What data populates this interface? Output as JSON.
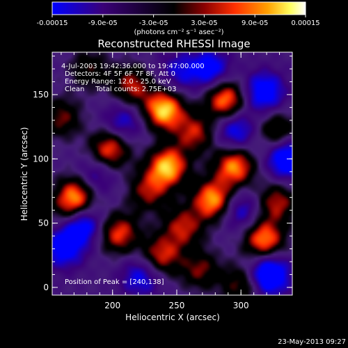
{
  "chart_data": {
    "type": "heatmap",
    "title": "Reconstructed RHESSI Image",
    "xlabel": "Heliocentric X (arcsec)",
    "ylabel": "Heliocentric Y (arcsec)",
    "xlim": [
      153,
      340
    ],
    "ylim": [
      -6,
      183
    ],
    "x_ticks": [
      "200",
      "250",
      "300"
    ],
    "x_tick_values": [
      200,
      250,
      300
    ],
    "y_ticks": [
      "0",
      "50",
      "100",
      "150"
    ],
    "y_tick_values": [
      0,
      50,
      100,
      150
    ],
    "colorbar": {
      "min": -0.00015,
      "max": 0.00015,
      "tick_labels": [
        "-0.00015",
        "-9.0e-05",
        "-3.0e-05",
        "3.0e-05",
        "9.0e-05",
        "0.00015"
      ],
      "tick_values": [
        -0.00015,
        -9e-05,
        -3e-05,
        3e-05,
        9e-05,
        0.00015
      ],
      "units_label": "(photons cm⁻² s⁻¹ asec⁻²)",
      "colors": [
        "#0000ff",
        "#3a0078",
        "#000000",
        "#8a0000",
        "#ff3000",
        "#ffa000",
        "#ffff60",
        "#ffffff"
      ]
    },
    "peaks": [
      {
        "x": 240,
        "y": 138,
        "v": 1.0
      },
      {
        "x": 243,
        "y": 94,
        "v": 0.95
      },
      {
        "x": 278,
        "y": 68,
        "v": 0.9
      },
      {
        "x": 288,
        "y": 146,
        "v": 0.85
      },
      {
        "x": 295,
        "y": 94,
        "v": 0.85
      },
      {
        "x": 168,
        "y": 60,
        "v": 0.65
      },
      {
        "x": 173,
        "y": 74,
        "v": 0.7
      },
      {
        "x": 198,
        "y": 108,
        "v": 0.75
      },
      {
        "x": 205,
        "y": 42,
        "v": 0.7
      },
      {
        "x": 215,
        "y": 157,
        "v": 0.6
      },
      {
        "x": 238,
        "y": 25,
        "v": 0.65
      },
      {
        "x": 255,
        "y": 47,
        "v": 0.6
      },
      {
        "x": 264,
        "y": 120,
        "v": 0.6
      },
      {
        "x": 318,
        "y": 37,
        "v": 0.85
      },
      {
        "x": 328,
        "y": 66,
        "v": 0.6
      },
      {
        "x": 268,
        "y": 14,
        "v": 0.5
      },
      {
        "x": 300,
        "y": 2,
        "v": 0.5
      },
      {
        "x": 228,
        "y": 75,
        "v": 0.55
      },
      {
        "x": 328,
        "y": 122,
        "v": 0.5
      },
      {
        "x": 160,
        "y": 132,
        "v": 0.5
      },
      {
        "x": 182,
        "y": 170,
        "v": 0.4
      },
      {
        "x": 322,
        "y": 10,
        "v": -0.9
      },
      {
        "x": 175,
        "y": 50,
        "v": -0.85
      },
      {
        "x": 318,
        "y": 152,
        "v": -0.7
      },
      {
        "x": 336,
        "y": 100,
        "v": -0.8
      },
      {
        "x": 296,
        "y": 122,
        "v": -0.55
      },
      {
        "x": 208,
        "y": 128,
        "v": -0.45
      },
      {
        "x": 222,
        "y": 8,
        "v": -0.5
      },
      {
        "x": 162,
        "y": 30,
        "v": -0.6
      },
      {
        "x": 276,
        "y": 170,
        "v": -0.6
      },
      {
        "x": 252,
        "y": 168,
        "v": -0.4
      },
      {
        "x": 300,
        "y": 60,
        "v": -0.45
      },
      {
        "x": 185,
        "y": 85,
        "v": -0.45
      }
    ],
    "info_lines": [
      "4-Jul-2003 19:42:36.000 to 19:47:00.000",
      "Detectors: 4F 5F 6F 7F 8F, Att 0",
      "Energy Range: 12.0 - 25.0 keV",
      "Clean     Total counts: 2.75E+03"
    ],
    "peak_label": "Position of Peak = [240,138]",
    "footer_date": "23-May-2013 09:27"
  }
}
